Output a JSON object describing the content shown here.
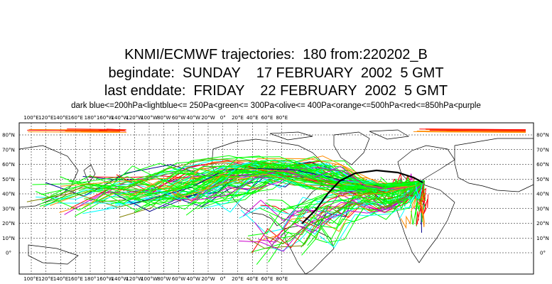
{
  "titles": {
    "line1": "KNMI/ECMWF trajectories:  180 from:220202_B",
    "line2": "begindate:  SUNDAY    17 FEBRUARY  2002  5 GMT",
    "line3": "last enddate:  FRIDAY    22 FEBRUARY  2002  5 GMT"
  },
  "legend_text": "dark blue<=200hPa<lightblue<= 250Pa<green<= 300Pa<olive<= 400Pa<orange<=500hPa<red<=850hPa<purple",
  "lon_labels": [
    "100°E",
    "120°E",
    "140°E",
    "160°E",
    "180°",
    "160°W",
    "140°W",
    "120°W",
    "100°W",
    "80°W",
    "60°W",
    "40°W",
    "20°W",
    "0°",
    "20°E",
    "40°E",
    "60°E",
    "80°E"
  ],
  "lat_labels": [
    "80°N",
    "70°N",
    "60°N",
    "50°N",
    "40°N",
    "30°N",
    "20°N",
    "10°N",
    "0°"
  ],
  "colors": {
    "dark_blue": "#00008b",
    "light_blue": "#00ffff",
    "green": "#00ff00",
    "olive": "#808000",
    "orange": "#ff8c00",
    "red": "#ff0000",
    "purple": "#cc00cc",
    "coast": "#000000"
  }
}
